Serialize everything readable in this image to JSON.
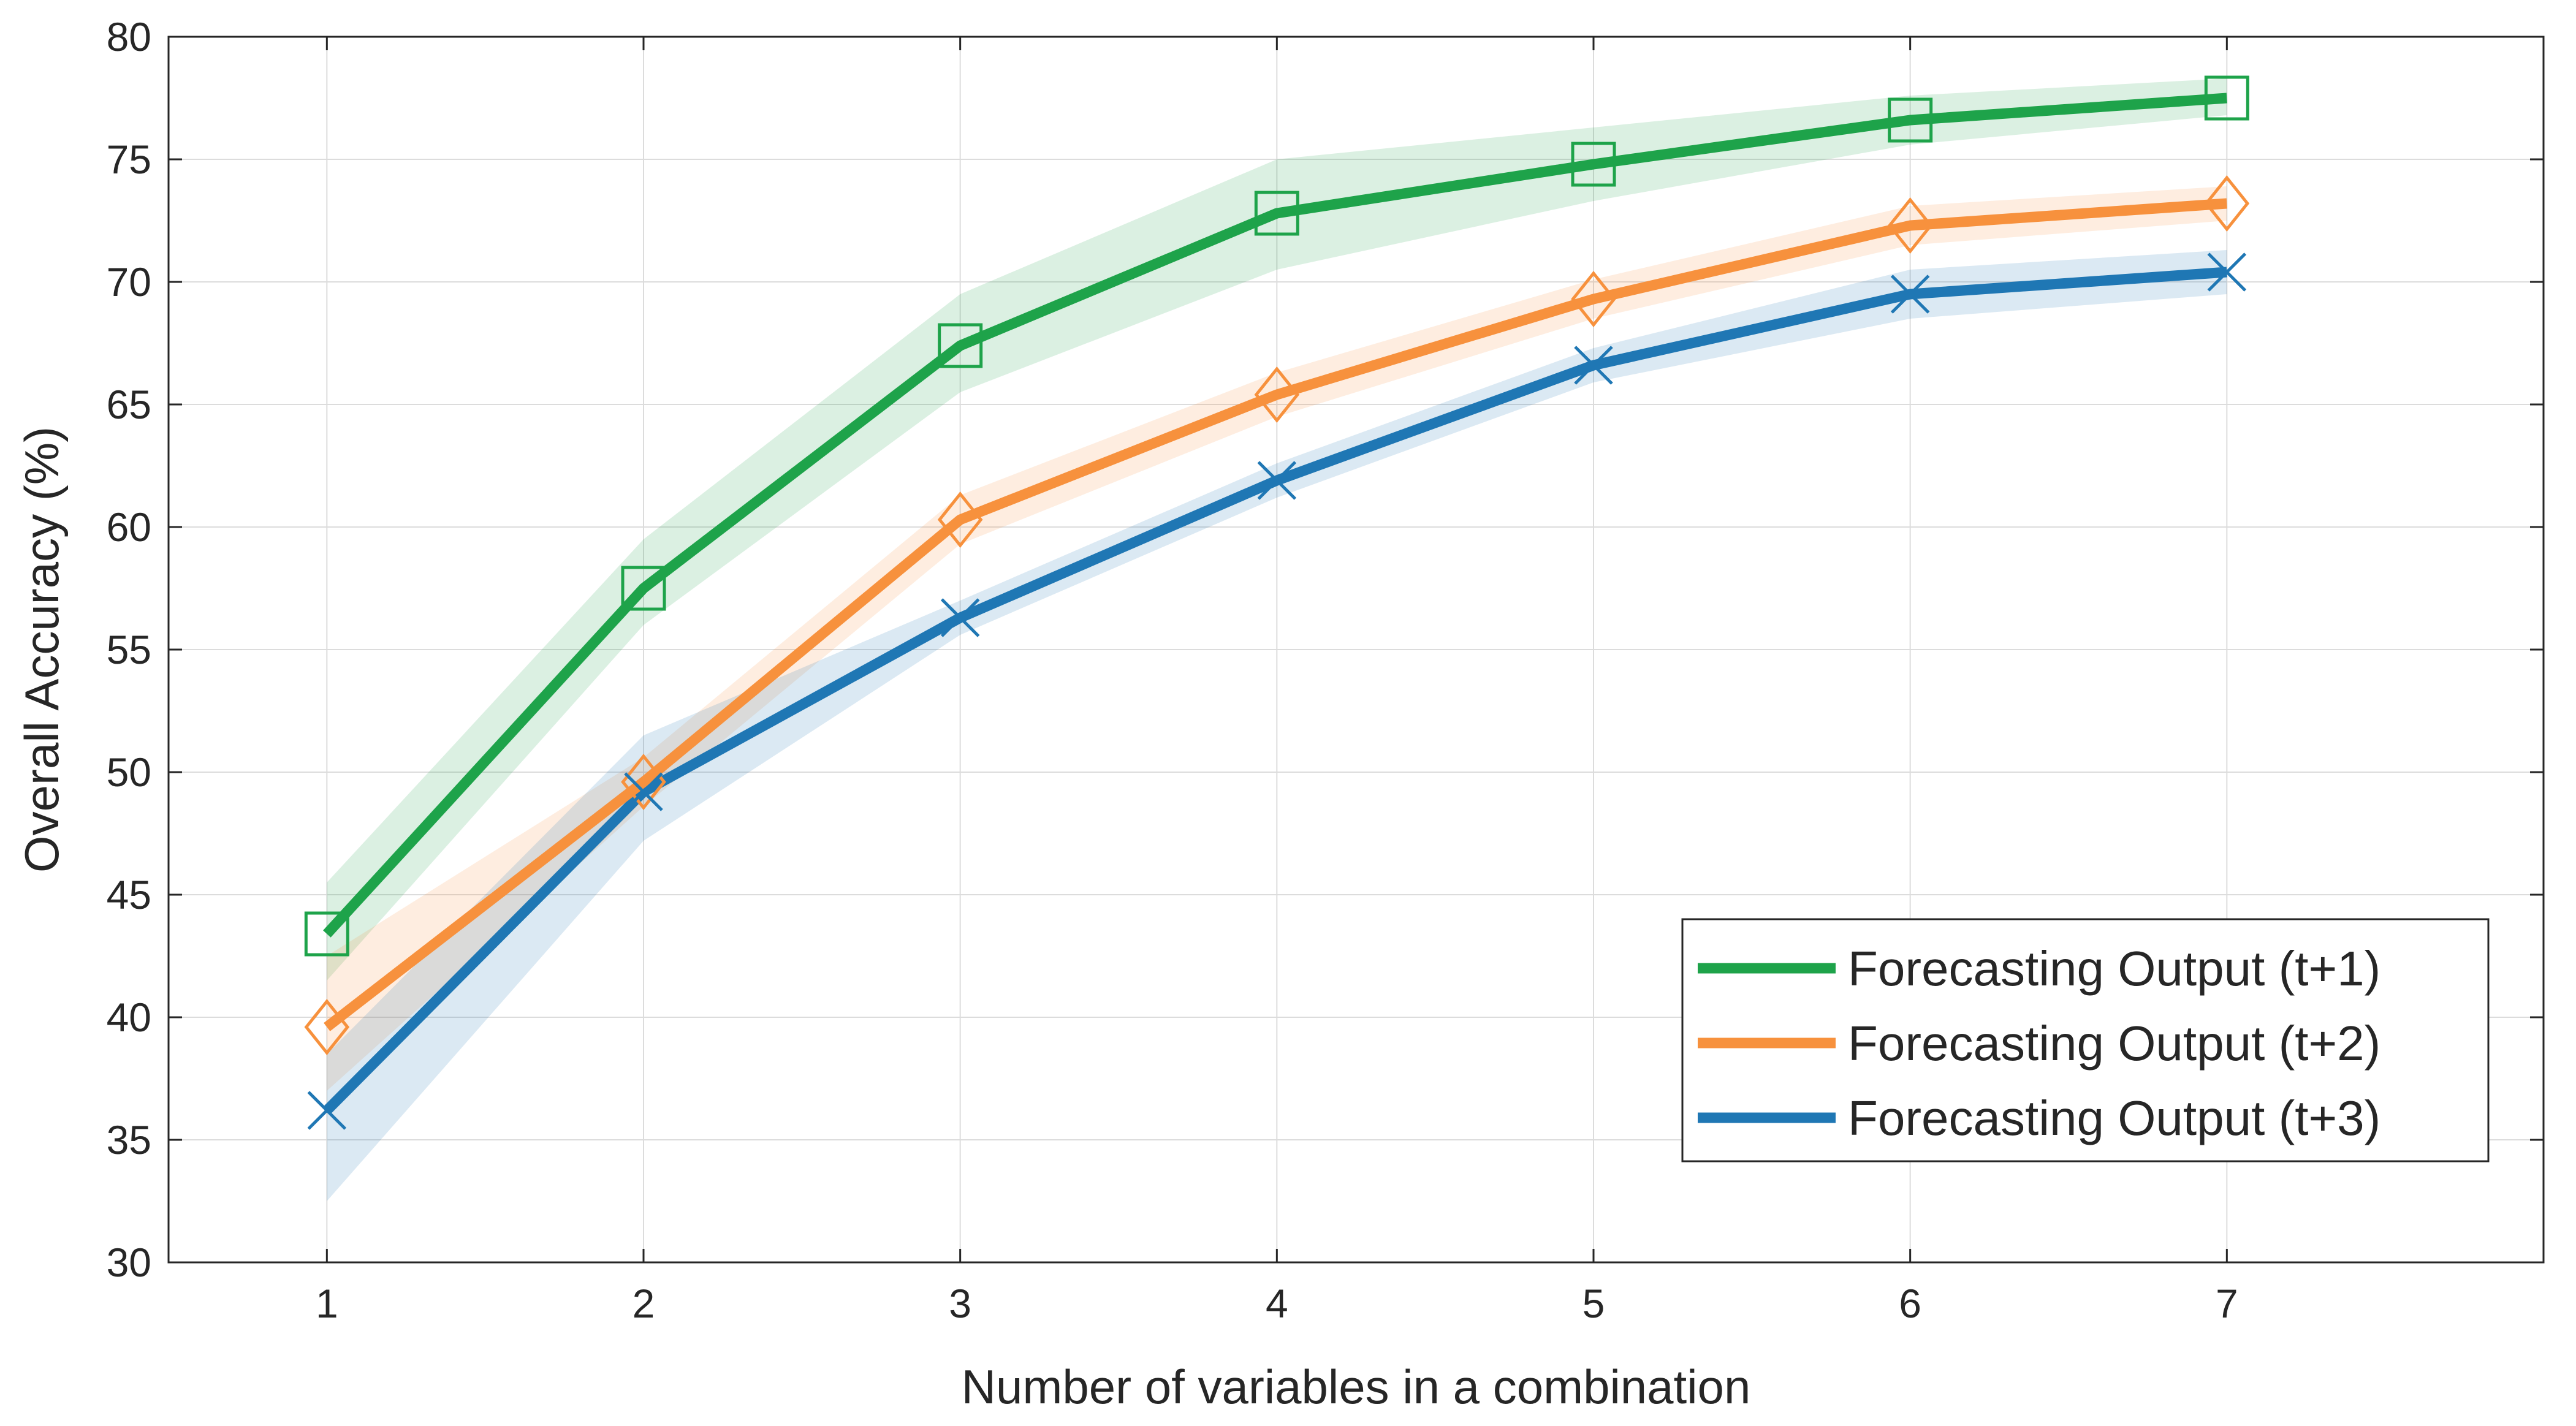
{
  "chart_data": {
    "type": "line",
    "title": "",
    "xlabel": "Number of variables in a combination",
    "ylabel": "Overall Accuracy (%)",
    "xlim": [
      0.5,
      8.0
    ],
    "ylim": [
      30,
      80
    ],
    "xticks": [
      1,
      2,
      3,
      4,
      5,
      6,
      7
    ],
    "yticks": [
      30,
      35,
      40,
      45,
      50,
      55,
      60,
      65,
      70,
      75,
      80
    ],
    "grid": true,
    "legend_position": "bottom-right",
    "x": [
      1,
      2,
      3,
      4,
      5,
      6,
      7
    ],
    "series": [
      {
        "name": "Forecasting Output (t+1)",
        "color": "#1ea34a",
        "marker": "square",
        "values": [
          43.4,
          57.5,
          67.4,
          72.8,
          74.8,
          76.6,
          77.5
        ],
        "band_low": [
          41.5,
          56.0,
          65.5,
          70.5,
          73.3,
          75.6,
          76.8
        ],
        "band_high": [
          45.5,
          59.5,
          69.5,
          75.0,
          76.3,
          77.6,
          78.3
        ]
      },
      {
        "name": "Forecasting Output (t+2)",
        "color": "#f7913d",
        "marker": "diamond",
        "values": [
          39.6,
          49.6,
          60.3,
          65.4,
          69.3,
          72.3,
          73.2
        ],
        "band_low": [
          37.0,
          48.6,
          59.3,
          64.5,
          68.5,
          71.5,
          72.5
        ],
        "band_high": [
          42.5,
          50.6,
          61.3,
          66.3,
          70.1,
          73.1,
          73.9
        ]
      },
      {
        "name": "Forecasting Output (t+3)",
        "color": "#1f77b4",
        "marker": "x",
        "values": [
          36.2,
          49.2,
          56.3,
          61.9,
          66.6,
          69.5,
          70.4
        ],
        "band_low": [
          32.5,
          47.2,
          55.6,
          61.2,
          65.9,
          68.5,
          69.5
        ],
        "band_high": [
          38.5,
          51.5,
          57.0,
          62.6,
          67.3,
          70.5,
          71.3
        ]
      }
    ]
  }
}
